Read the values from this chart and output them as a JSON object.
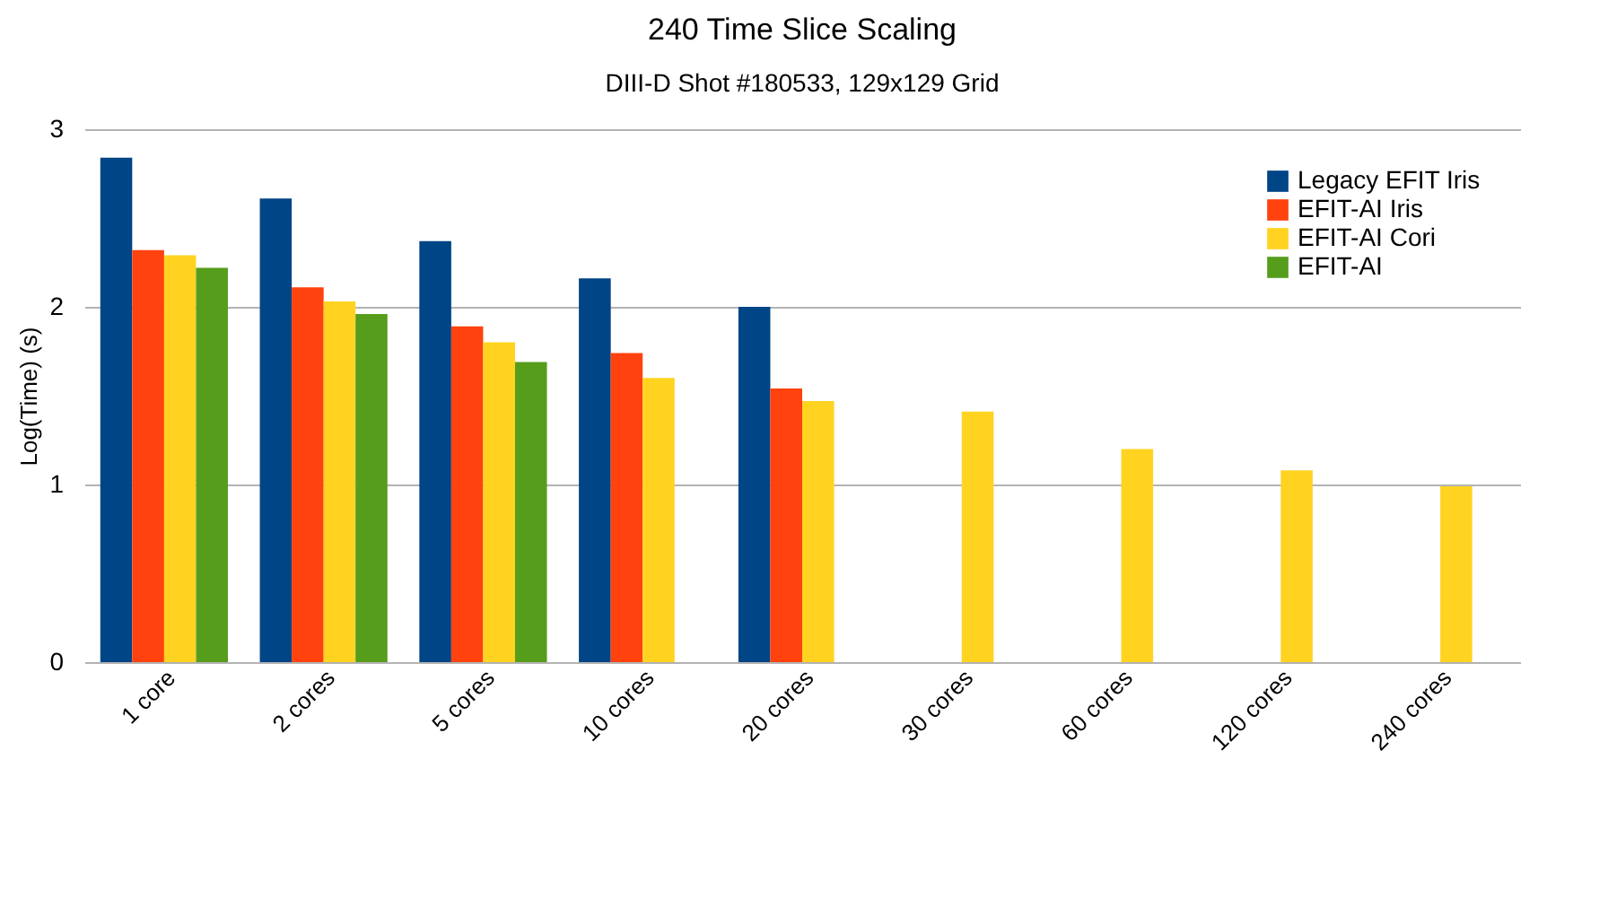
{
  "chart_data": {
    "type": "bar",
    "title": "240 Time Slice Scaling",
    "subtitle": "DIII-D Shot #180533, 129x129 Grid",
    "ylabel": "Log(Time) (s)",
    "categories": [
      "1 core",
      "2 cores",
      "5 cores",
      "10 cores",
      "20 cores",
      "30 cores",
      "60 cores",
      "120 cores",
      "240 cores"
    ],
    "series": [
      {
        "name": "Legacy EFIT Iris",
        "color": "#004586",
        "values": [
          2.84,
          2.61,
          2.37,
          2.16,
          2.0,
          null,
          null,
          null,
          null
        ]
      },
      {
        "name": "EFIT-AI Iris",
        "color": "#ff420e",
        "values": [
          2.32,
          2.11,
          1.89,
          1.74,
          1.54,
          null,
          null,
          null,
          null
        ]
      },
      {
        "name": "EFIT-AI Cori",
        "color": "#ffd320",
        "values": [
          2.29,
          2.03,
          1.8,
          1.6,
          1.47,
          1.41,
          1.2,
          1.08,
          0.99
        ]
      },
      {
        "name": "EFIT-AI",
        "color": "#579d1c",
        "values": [
          2.22,
          1.96,
          1.69,
          null,
          null,
          null,
          null,
          null,
          null
        ]
      }
    ],
    "ylim": [
      0,
      3
    ],
    "yticks": [
      0,
      1,
      2,
      3
    ],
    "grid": "y",
    "legend": "top right"
  }
}
